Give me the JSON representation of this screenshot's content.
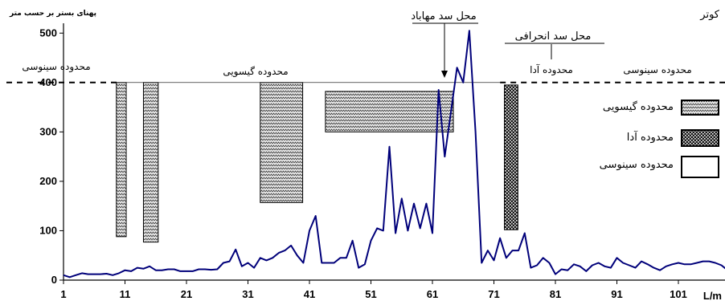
{
  "chart_data": {
    "type": "line",
    "ylabel": "پهنای بستر بر حسب متر",
    "xlabel": "L/m",
    "xlim": [
      1,
      110
    ],
    "ylim": [
      0,
      520
    ],
    "x_ticks": [
      1,
      11,
      21,
      31,
      41,
      51,
      61,
      71,
      81,
      91,
      101
    ],
    "y_ticks": [
      0,
      100,
      200,
      300,
      400,
      500
    ],
    "grid": false,
    "legend_position": "right",
    "reference_line": {
      "y": 400,
      "style": "dashed"
    },
    "top_right_label": "کوتر",
    "series": [
      {
        "color": "#00007a",
        "x": [
          1,
          2,
          3,
          4,
          5,
          6,
          7,
          8,
          9,
          10,
          11,
          12,
          13,
          14,
          15,
          16,
          17,
          18,
          19,
          20,
          21,
          22,
          23,
          24,
          25,
          26,
          27,
          28,
          29,
          30,
          31,
          32,
          33,
          34,
          35,
          36,
          37,
          38,
          39,
          40,
          41,
          42,
          43,
          44,
          45,
          46,
          47,
          48,
          49,
          50,
          51,
          52,
          53,
          54,
          55,
          56,
          57,
          58,
          59,
          60,
          61,
          62,
          63,
          64,
          65,
          66,
          67,
          68,
          69,
          70,
          71,
          72,
          73,
          74,
          75,
          76,
          77,
          78,
          79,
          80,
          81,
          82,
          83,
          84,
          85,
          86,
          87,
          88,
          89,
          90,
          91,
          92,
          93,
          94,
          95,
          96,
          97,
          98,
          99,
          100,
          101,
          102,
          103,
          104,
          105,
          106,
          107,
          108,
          109,
          110
        ],
        "values": [
          10,
          6,
          10,
          14,
          12,
          12,
          12,
          13,
          10,
          14,
          20,
          18,
          25,
          23,
          28,
          20,
          20,
          22,
          22,
          18,
          18,
          18,
          22,
          22,
          21,
          22,
          35,
          38,
          62,
          28,
          35,
          25,
          45,
          40,
          45,
          55,
          60,
          70,
          50,
          35,
          100,
          130,
          35,
          35,
          35,
          45,
          45,
          80,
          25,
          32,
          80,
          105,
          100,
          270,
          95,
          165,
          100,
          155,
          105,
          155,
          95,
          385,
          250,
          340,
          430,
          400,
          505,
          300,
          35,
          60,
          40,
          85,
          45,
          60,
          60,
          95,
          25,
          30,
          45,
          35,
          12,
          22,
          20,
          32,
          28,
          18,
          30,
          35,
          28,
          25,
          45,
          35,
          30,
          25,
          38,
          32,
          25,
          20,
          28,
          32,
          35,
          32,
          32,
          35,
          38,
          38,
          35,
          30,
          20,
          50
        ]
      }
    ],
    "ranges": [
      {
        "label": "محدوده گیسویی",
        "type": "gypsum",
        "x0": 9.6,
        "x1": 11.2,
        "y0": 88,
        "y1": 400
      },
      {
        "label": "محدوده گیسویی",
        "type": "gypsum",
        "x0": 14.0,
        "x1": 16.4,
        "y0": 77,
        "y1": 400
      },
      {
        "label": "محدوده گیسویی",
        "type": "gypsum",
        "x0": 33.0,
        "x1": 39.9,
        "y0": 157,
        "y1": 400
      },
      {
        "label": "محدوده گیسویی",
        "type": "gypsum",
        "x0": 43.6,
        "x1": 64.4,
        "y0": 300,
        "y1": 382
      },
      {
        "label": "محدوده آدا",
        "type": "ada",
        "x0": 72.7,
        "x1": 74.9,
        "y0": 102,
        "y1": 395
      }
    ],
    "legend": [
      {
        "label": "محدوده گیسویی",
        "type": "gypsum"
      },
      {
        "label": "محدوده آدا",
        "type": "ada"
      },
      {
        "label": "محدوده سینوسی",
        "type": "sinuous"
      }
    ],
    "annotations": [
      {
        "text": "محدوده سینوسی",
        "x": 1,
        "y": 420
      },
      {
        "text": "محدوده گیسویی",
        "x": 36,
        "y": 415
      },
      {
        "text": "محل سد مهاباد",
        "x": 64,
        "y": 520
      },
      {
        "text": "محل سد انحرافی",
        "x": 78,
        "y": 480
      },
      {
        "text": "محدوده آدا",
        "x": 73,
        "y": 420
      },
      {
        "text": "محدوده سینوسی",
        "x": 92,
        "y": 420
      }
    ]
  }
}
